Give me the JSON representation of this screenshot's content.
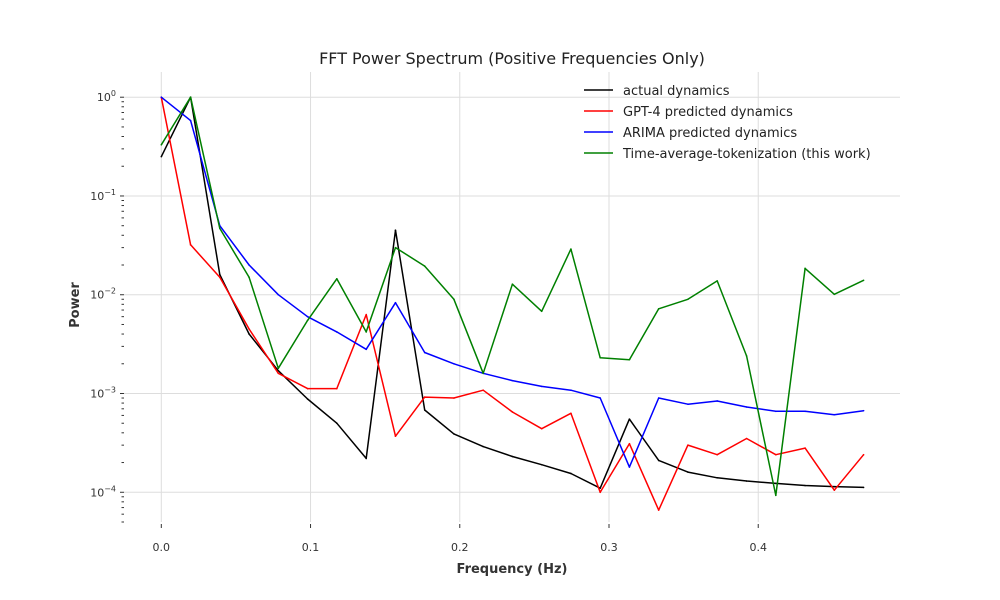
{
  "chart_data": {
    "type": "line",
    "title": "FFT Power Spectrum (Positive Frequencies Only)",
    "xlabel": "Frequency (Hz)",
    "ylabel": "Power",
    "x_scale": "linear",
    "y_scale": "log",
    "xlim": [
      -0.025,
      0.495
    ],
    "ylim": [
      5e-05,
      1.8
    ],
    "grid": true,
    "legend_position": "top-right",
    "x_ticks": [
      {
        "value": 0.0,
        "label": "0.0"
      },
      {
        "value": 0.1,
        "label": "0.1"
      },
      {
        "value": 0.2,
        "label": "0.2"
      },
      {
        "value": 0.3,
        "label": "0.3"
      },
      {
        "value": 0.4,
        "label": "0.4"
      }
    ],
    "y_ticks": [
      {
        "value": 1,
        "base": "10",
        "exp": "0"
      },
      {
        "value": 0.1,
        "base": "10",
        "exp": "−1"
      },
      {
        "value": 0.01,
        "base": "10",
        "exp": "−2"
      },
      {
        "value": 0.001,
        "base": "10",
        "exp": "−3"
      },
      {
        "value": 0.0001,
        "base": "10",
        "exp": "−4"
      }
    ],
    "x": [
      0.0,
      0.0196,
      0.0392,
      0.0588,
      0.0784,
      0.098,
      0.1176,
      0.1373,
      0.1569,
      0.1765,
      0.1961,
      0.2157,
      0.2353,
      0.2549,
      0.2745,
      0.2941,
      0.3137,
      0.3333,
      0.3529,
      0.3725,
      0.3922,
      0.4118,
      0.4314,
      0.451,
      0.4706
    ],
    "series": [
      {
        "name": "actual dynamics",
        "color": "#000000",
        "values": [
          0.25,
          1.0,
          0.016,
          0.004,
          0.0017,
          0.00088,
          0.0005,
          0.00022,
          0.045,
          0.00068,
          0.00039,
          0.00029,
          0.00023,
          0.00019,
          0.000155,
          0.00011,
          0.00055,
          0.00021,
          0.00016,
          0.00014,
          0.00013,
          0.000123,
          0.000117,
          0.000114,
          0.000112
        ]
      },
      {
        "name": "GPT-4 predicted dynamics",
        "color": "#ff0000",
        "values": [
          1.0,
          0.032,
          0.015,
          0.0045,
          0.0016,
          0.00112,
          0.00112,
          0.0063,
          0.00037,
          0.00092,
          0.0009,
          0.00108,
          0.00065,
          0.00044,
          0.00063,
          0.0001,
          0.00031,
          6.6e-05,
          0.0003,
          0.00024,
          0.00035,
          0.00024,
          0.00028,
          0.000105,
          0.00024
        ]
      },
      {
        "name": "ARIMA predicted dynamics",
        "color": "#0000ff",
        "values": [
          1.0,
          0.58,
          0.05,
          0.02,
          0.01,
          0.006,
          0.0042,
          0.0028,
          0.0083,
          0.0026,
          0.002,
          0.0016,
          0.00135,
          0.00118,
          0.00108,
          0.0009,
          0.00018,
          0.0009,
          0.00078,
          0.00084,
          0.00073,
          0.00066,
          0.00066,
          0.00061,
          0.00067
        ]
      },
      {
        "name": "Time-average-tokenization (this work)",
        "color": "#008000",
        "values": [
          0.33,
          1.0,
          0.047,
          0.015,
          0.0018,
          0.0055,
          0.0145,
          0.0042,
          0.03,
          0.0195,
          0.009,
          0.0016,
          0.0128,
          0.0068,
          0.029,
          0.0023,
          0.0022,
          0.0072,
          0.009,
          0.0138,
          0.0024,
          9.3e-05,
          0.0185,
          0.0101,
          0.014
        ]
      }
    ]
  }
}
